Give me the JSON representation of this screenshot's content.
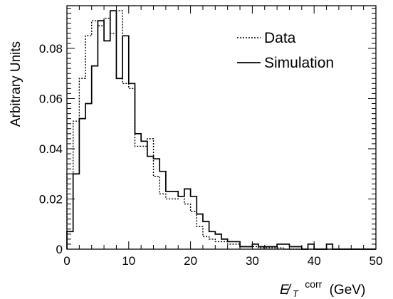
{
  "chart_data": {
    "type": "line",
    "title": "",
    "xlabel": "E̸_T corr (GeV)",
    "xlabel_parts": {
      "main": "E̸",
      "sub": "T",
      "sup": "corr",
      "unit": "(GeV)"
    },
    "ylabel": "Arbitrary Units",
    "xlim": [
      0,
      50
    ],
    "ylim": [
      0,
      0.097
    ],
    "grid": false,
    "legend_position": "top-right",
    "x_ticks": [
      0,
      10,
      20,
      30,
      40,
      50
    ],
    "x_tick_labels": [
      "0",
      "10",
      "20",
      "30",
      "40",
      "50"
    ],
    "y_ticks": [
      0,
      0.02,
      0.04,
      0.06,
      0.08
    ],
    "y_tick_labels": [
      "0",
      "0.02",
      "0.04",
      "0.06",
      "0.08"
    ],
    "bin_edges": [
      0,
      1,
      2,
      3,
      4,
      5,
      6,
      7,
      8,
      9,
      10,
      11,
      12,
      13,
      14,
      15,
      16,
      17,
      18,
      19,
      20,
      21,
      22,
      23,
      24,
      25,
      26,
      27,
      28,
      29,
      30,
      31,
      32,
      33,
      34,
      35,
      36,
      37,
      38,
      39,
      40,
      41,
      42,
      43,
      44,
      45,
      46,
      47,
      48,
      49,
      50
    ],
    "series": [
      {
        "name": "Data",
        "style": "dotted",
        "color": "#000000",
        "values": [
          0.03,
          0.051,
          0.068,
          0.085,
          0.091,
          0.089,
          0.092,
          0.086,
          0.095,
          0.066,
          0.064,
          0.041,
          0.041,
          0.044,
          0.029,
          0.022,
          0.02,
          0.02,
          0.021,
          0.018,
          0.015,
          0.009,
          0.005,
          0.004,
          0.003,
          0.003,
          0.002,
          0.002,
          0.001,
          0.001,
          0.001,
          0.0005,
          0.0005,
          0.0005,
          0.0005,
          0,
          0,
          0,
          0,
          0,
          0,
          0,
          0,
          0,
          0,
          0,
          0,
          0,
          0,
          0
        ]
      },
      {
        "name": "Simulation",
        "style": "solid",
        "color": "#000000",
        "values": [
          0.007,
          0.03,
          0.052,
          0.058,
          0.073,
          0.091,
          0.083,
          0.095,
          0.068,
          0.085,
          0.066,
          0.046,
          0.043,
          0.037,
          0.036,
          0.031,
          0.023,
          0.023,
          0.021,
          0.024,
          0.021,
          0.014,
          0.011,
          0.007,
          0.006,
          0.004,
          0.003,
          0.003,
          0.001,
          0.001,
          0.002,
          0.001,
          0.001,
          0.001,
          0.002,
          0.002,
          0.001,
          0.001,
          0,
          0.002,
          0,
          0,
          0.002,
          0,
          0,
          0,
          0,
          0,
          0,
          0
        ]
      }
    ]
  }
}
